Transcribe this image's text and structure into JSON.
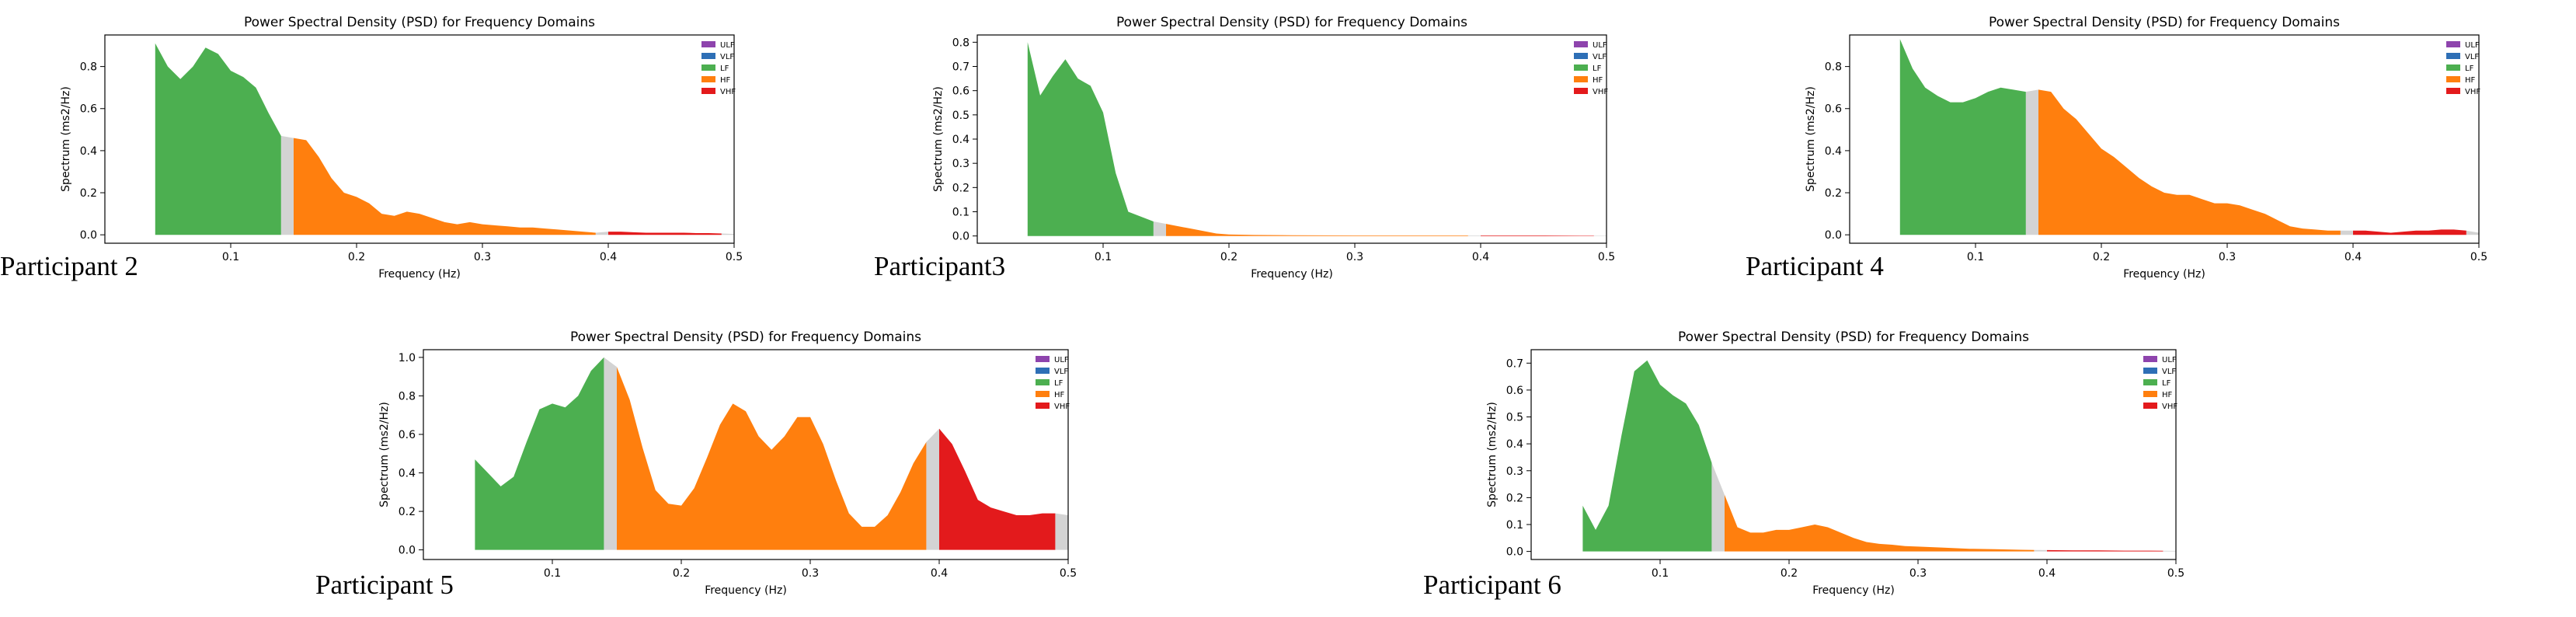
{
  "colors": {
    "ULF": "#8e44ad",
    "VLF": "#2e6fb6",
    "LF": "#4caf50",
    "HF": "#ff7f0e",
    "VHF": "#e31a1c",
    "gap": "#d3d3d3"
  },
  "legend_entries": [
    "ULF",
    "VLF",
    "LF",
    "HF",
    "VHF"
  ],
  "participant_labels": [
    "Participant 2",
    "Participant3",
    "Participant 4",
    "Participant 5",
    "Participant 6"
  ],
  "chart_data": [
    {
      "type": "area",
      "title": "Power Spectral Density (PSD) for Frequency Domains",
      "xlabel": "Frequency (Hz)",
      "ylabel": "Spectrum (ms2/Hz)",
      "xlim": [
        0.0,
        0.5
      ],
      "ylim": [
        -0.04,
        0.95
      ],
      "xticks": [
        0.1,
        0.2,
        0.3,
        0.4,
        0.5
      ],
      "yticks": [
        0.0,
        0.2,
        0.4,
        0.6,
        0.8
      ],
      "legend": "top-right",
      "grid": false,
      "x": [
        0.04,
        0.05,
        0.06,
        0.07,
        0.08,
        0.09,
        0.1,
        0.11,
        0.12,
        0.13,
        0.14,
        0.15,
        0.16,
        0.17,
        0.18,
        0.19,
        0.2,
        0.21,
        0.22,
        0.23,
        0.24,
        0.25,
        0.26,
        0.27,
        0.28,
        0.29,
        0.3,
        0.31,
        0.32,
        0.33,
        0.34,
        0.35,
        0.36,
        0.37,
        0.38,
        0.39,
        0.4,
        0.41,
        0.42,
        0.43,
        0.44,
        0.45,
        0.46,
        0.47,
        0.48,
        0.49,
        0.5
      ],
      "y": [
        0.91,
        0.8,
        0.74,
        0.8,
        0.89,
        0.86,
        0.78,
        0.75,
        0.7,
        0.58,
        0.47,
        0.46,
        0.45,
        0.37,
        0.27,
        0.2,
        0.18,
        0.15,
        0.1,
        0.09,
        0.11,
        0.1,
        0.08,
        0.06,
        0.05,
        0.06,
        0.05,
        0.045,
        0.04,
        0.035,
        0.035,
        0.03,
        0.025,
        0.02,
        0.015,
        0.01,
        0.015,
        0.015,
        0.012,
        0.01,
        0.01,
        0.01,
        0.01,
        0.008,
        0.008,
        0.006,
        0.004
      ]
    },
    {
      "type": "area",
      "title": "Power Spectral Density (PSD) for Frequency Domains",
      "xlabel": "Frequency (Hz)",
      "ylabel": "Spectrum (ms2/Hz)",
      "xlim": [
        0.0,
        0.5
      ],
      "ylim": [
        -0.03,
        0.83
      ],
      "xticks": [
        0.1,
        0.2,
        0.3,
        0.4,
        0.5
      ],
      "yticks": [
        0.0,
        0.1,
        0.2,
        0.3,
        0.4,
        0.5,
        0.6,
        0.7,
        0.8
      ],
      "legend": "top-right",
      "grid": false,
      "x": [
        0.04,
        0.05,
        0.06,
        0.07,
        0.08,
        0.09,
        0.1,
        0.11,
        0.12,
        0.13,
        0.14,
        0.15,
        0.16,
        0.17,
        0.18,
        0.19,
        0.2,
        0.22,
        0.25,
        0.3,
        0.35,
        0.4,
        0.45,
        0.49,
        0.5
      ],
      "y": [
        0.8,
        0.58,
        0.66,
        0.73,
        0.65,
        0.62,
        0.51,
        0.26,
        0.1,
        0.08,
        0.06,
        0.05,
        0.04,
        0.03,
        0.02,
        0.01,
        0.006,
        0.004,
        0.003,
        0.002,
        0.002,
        0.002,
        0.002,
        0.001,
        0.001
      ]
    },
    {
      "type": "area",
      "title": "Power Spectral Density (PSD) for Frequency Domains",
      "xlabel": "Frequency (Hz)",
      "ylabel": "Spectrum (ms2/Hz)",
      "xlim": [
        0.0,
        0.5
      ],
      "ylim": [
        -0.04,
        0.95
      ],
      "xticks": [
        0.1,
        0.2,
        0.3,
        0.4,
        0.5
      ],
      "yticks": [
        0.0,
        0.2,
        0.4,
        0.6,
        0.8
      ],
      "legend": "top-right",
      "grid": false,
      "x": [
        0.04,
        0.05,
        0.06,
        0.07,
        0.08,
        0.09,
        0.1,
        0.11,
        0.12,
        0.13,
        0.14,
        0.15,
        0.16,
        0.17,
        0.18,
        0.19,
        0.2,
        0.21,
        0.22,
        0.23,
        0.24,
        0.25,
        0.26,
        0.27,
        0.28,
        0.29,
        0.3,
        0.31,
        0.32,
        0.33,
        0.34,
        0.35,
        0.36,
        0.37,
        0.38,
        0.39,
        0.4,
        0.41,
        0.42,
        0.43,
        0.44,
        0.45,
        0.46,
        0.47,
        0.48,
        0.49,
        0.5
      ],
      "y": [
        0.93,
        0.79,
        0.7,
        0.66,
        0.63,
        0.63,
        0.65,
        0.68,
        0.7,
        0.69,
        0.68,
        0.69,
        0.68,
        0.6,
        0.55,
        0.48,
        0.41,
        0.37,
        0.32,
        0.27,
        0.23,
        0.2,
        0.19,
        0.19,
        0.17,
        0.15,
        0.15,
        0.14,
        0.12,
        0.1,
        0.07,
        0.04,
        0.03,
        0.025,
        0.02,
        0.02,
        0.02,
        0.02,
        0.015,
        0.01,
        0.015,
        0.02,
        0.02,
        0.025,
        0.025,
        0.02,
        0.01
      ]
    },
    {
      "type": "area",
      "title": "Power Spectral Density (PSD) for Frequency Domains",
      "xlabel": "Frequency (Hz)",
      "ylabel": "Spectrum (ms2/Hz)",
      "xlim": [
        0.0,
        0.5
      ],
      "ylim": [
        -0.05,
        1.04
      ],
      "xticks": [
        0.1,
        0.2,
        0.3,
        0.4,
        0.5
      ],
      "yticks": [
        0.0,
        0.2,
        0.4,
        0.6,
        0.8,
        1.0
      ],
      "legend": "top-right",
      "grid": false,
      "x": [
        0.04,
        0.05,
        0.06,
        0.07,
        0.08,
        0.09,
        0.1,
        0.11,
        0.12,
        0.13,
        0.14,
        0.15,
        0.16,
        0.17,
        0.18,
        0.19,
        0.2,
        0.21,
        0.22,
        0.23,
        0.24,
        0.25,
        0.26,
        0.27,
        0.28,
        0.29,
        0.3,
        0.31,
        0.32,
        0.33,
        0.34,
        0.35,
        0.36,
        0.37,
        0.38,
        0.39,
        0.4,
        0.41,
        0.42,
        0.43,
        0.44,
        0.45,
        0.46,
        0.47,
        0.48,
        0.49,
        0.5
      ],
      "y": [
        0.47,
        0.4,
        0.33,
        0.38,
        0.56,
        0.73,
        0.76,
        0.74,
        0.8,
        0.93,
        1.0,
        0.95,
        0.78,
        0.53,
        0.31,
        0.24,
        0.23,
        0.32,
        0.48,
        0.65,
        0.76,
        0.72,
        0.59,
        0.52,
        0.59,
        0.69,
        0.69,
        0.55,
        0.36,
        0.19,
        0.12,
        0.12,
        0.18,
        0.3,
        0.45,
        0.56,
        0.63,
        0.55,
        0.41,
        0.26,
        0.22,
        0.2,
        0.18,
        0.18,
        0.19,
        0.19,
        0.18
      ]
    },
    {
      "type": "area",
      "title": "Power Spectral Density (PSD) for Frequency Domains",
      "xlabel": "Frequency (Hz)",
      "ylabel": "Spectrum (ms2/Hz)",
      "xlim": [
        0.0,
        0.5
      ],
      "ylim": [
        -0.03,
        0.75
      ],
      "xticks": [
        0.1,
        0.2,
        0.3,
        0.4,
        0.5
      ],
      "yticks": [
        0.0,
        0.1,
        0.2,
        0.3,
        0.4,
        0.5,
        0.6,
        0.7
      ],
      "legend": "top-right",
      "grid": false,
      "x": [
        0.04,
        0.05,
        0.06,
        0.07,
        0.08,
        0.09,
        0.1,
        0.11,
        0.12,
        0.13,
        0.14,
        0.15,
        0.16,
        0.17,
        0.18,
        0.19,
        0.2,
        0.21,
        0.22,
        0.23,
        0.24,
        0.25,
        0.26,
        0.27,
        0.28,
        0.29,
        0.3,
        0.32,
        0.34,
        0.36,
        0.38,
        0.4,
        0.42,
        0.44,
        0.46,
        0.48,
        0.5
      ],
      "y": [
        0.17,
        0.08,
        0.17,
        0.43,
        0.67,
        0.71,
        0.62,
        0.58,
        0.55,
        0.47,
        0.33,
        0.21,
        0.09,
        0.07,
        0.07,
        0.08,
        0.08,
        0.09,
        0.1,
        0.09,
        0.07,
        0.05,
        0.035,
        0.028,
        0.025,
        0.02,
        0.018,
        0.014,
        0.01,
        0.008,
        0.006,
        0.005,
        0.004,
        0.004,
        0.003,
        0.003,
        0.002
      ]
    }
  ]
}
